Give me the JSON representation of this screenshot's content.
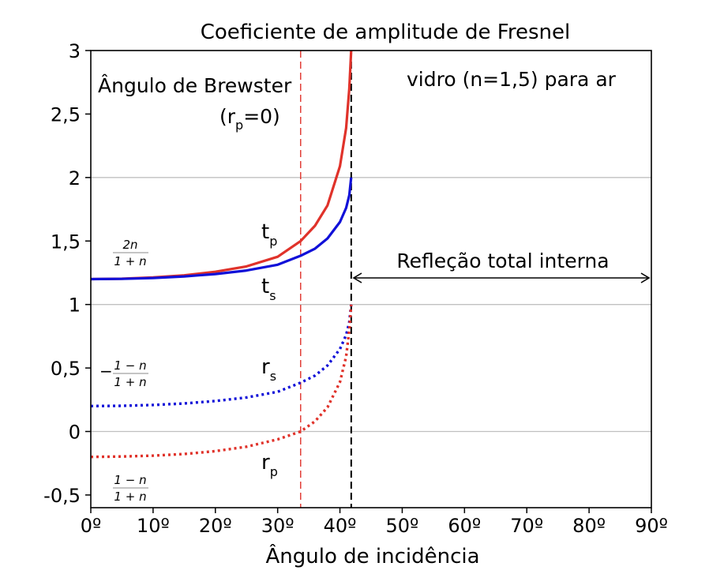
{
  "chart_data": {
    "type": "line",
    "title": "Coeficiente de amplitude de Fresnel",
    "xlabel": "Ângulo de incidência",
    "ylabel": "",
    "xlim": [
      0,
      90
    ],
    "ylim": [
      -0.6,
      3
    ],
    "n1": 1.5,
    "n2": 1.0,
    "critical_angle": 41.81,
    "brewster_angle": 33.69,
    "x_ticks": [
      {
        "value": 0,
        "label": "0º"
      },
      {
        "value": 10,
        "label": "10º"
      },
      {
        "value": 20,
        "label": "20º"
      },
      {
        "value": 30,
        "label": "30º"
      },
      {
        "value": 40,
        "label": "40º"
      },
      {
        "value": 50,
        "label": "50º"
      },
      {
        "value": 60,
        "label": "60º"
      },
      {
        "value": 70,
        "label": "70º"
      },
      {
        "value": 80,
        "label": "80º"
      },
      {
        "value": 90,
        "label": "90º"
      }
    ],
    "y_ticks": [
      {
        "value": -0.5,
        "label": "-0,5"
      },
      {
        "value": 0,
        "label": "0"
      },
      {
        "value": 0.5,
        "label": "0,5"
      },
      {
        "value": 1,
        "label": "1"
      },
      {
        "value": 1.5,
        "label": "1,5"
      },
      {
        "value": 2,
        "label": "2"
      },
      {
        "value": 2.5,
        "label": "2,5"
      },
      {
        "value": 3,
        "label": "3"
      }
    ],
    "gridlines_y": [
      0,
      1,
      2
    ],
    "series": [
      {
        "name": "tp",
        "label": "t",
        "sub": "p",
        "color": "#e0322a",
        "style": "solid",
        "x": [
          0,
          5,
          10,
          15,
          20,
          25,
          30,
          33.69,
          36,
          38,
          40,
          41,
          41.5,
          41.81
        ],
        "values": [
          1.2,
          1.203,
          1.213,
          1.23,
          1.258,
          1.3,
          1.376,
          1.5,
          1.62,
          1.78,
          2.09,
          2.39,
          2.7,
          3.0
        ]
      },
      {
        "name": "ts",
        "label": "t",
        "sub": "s",
        "color": "#1010d8",
        "style": "solid",
        "x": [
          0,
          5,
          10,
          15,
          20,
          25,
          30,
          33.69,
          36,
          38,
          40,
          41,
          41.5,
          41.81
        ],
        "values": [
          1.2,
          1.202,
          1.209,
          1.221,
          1.24,
          1.268,
          1.313,
          1.384,
          1.44,
          1.52,
          1.65,
          1.76,
          1.86,
          2.0
        ]
      },
      {
        "name": "rs",
        "label": "r",
        "sub": "s",
        "color": "#1010d8",
        "style": "dotted",
        "x": [
          0,
          5,
          10,
          15,
          20,
          25,
          30,
          33.69,
          36,
          38,
          40,
          41,
          41.5,
          41.81
        ],
        "values": [
          0.2,
          0.202,
          0.209,
          0.221,
          0.24,
          0.268,
          0.313,
          0.384,
          0.44,
          0.52,
          0.65,
          0.76,
          0.86,
          1.0
        ]
      },
      {
        "name": "rp",
        "label": "r",
        "sub": "p",
        "color": "#e0322a",
        "style": "dotted",
        "x": [
          0,
          5,
          10,
          15,
          20,
          25,
          30,
          33.69,
          36,
          38,
          40,
          41,
          41.5,
          41.81
        ],
        "values": [
          -0.2,
          -0.197,
          -0.19,
          -0.177,
          -0.155,
          -0.12,
          -0.062,
          0.0,
          0.08,
          0.19,
          0.39,
          0.59,
          0.8,
          1.0
        ]
      }
    ],
    "annotations": {
      "brewster_line1": "Ângulo de Brewster",
      "brewster_line2_open": "(r",
      "brewster_line2_sub": "p",
      "brewster_line2_close": "=0)",
      "medium": "vidro (n=1,5) para ar",
      "tir": "Refleção total interna",
      "frac_2n_num": "2n",
      "frac_2n_den": "1 + n",
      "frac_neg_prefix": "−",
      "frac_neg_num": "1 − n",
      "frac_neg_den": "1 + n",
      "frac_rp_num": "1 − n",
      "frac_rp_den": "1 + n"
    },
    "colors": {
      "red": "#e0322a",
      "blue": "#1010d8",
      "grid": "#c0c0c0",
      "gray": "#8a8a8a",
      "brewster": "#e0322a"
    }
  }
}
